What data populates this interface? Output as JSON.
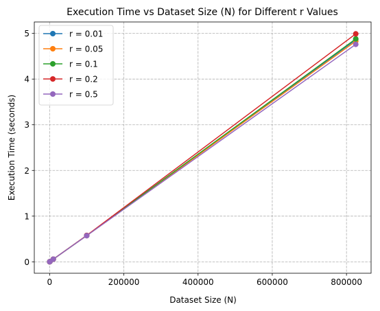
{
  "chart_data": {
    "type": "line",
    "title": "Execution Time vs Dataset Size (N) for Different r Values",
    "xlabel": "Dataset Size (N)",
    "ylabel": "Execution Time (seconds)",
    "xlim": [
      -41250,
      866250
    ],
    "ylim": [
      -0.25,
      5.25
    ],
    "xticks": [
      0,
      200000,
      400000,
      600000,
      800000
    ],
    "yticks": [
      0,
      1,
      2,
      3,
      4,
      5
    ],
    "grid": true,
    "legend_position": "top-left",
    "x": [
      100,
      1000,
      10000,
      100000,
      825000
    ],
    "series": [
      {
        "name": "r = 0.01",
        "color": "#1f77b4",
        "values": [
          0.0006,
          0.006,
          0.058,
          0.575,
          4.86
        ]
      },
      {
        "name": "r = 0.05",
        "color": "#ff7f0e",
        "values": [
          0.0006,
          0.006,
          0.058,
          0.574,
          4.83
        ]
      },
      {
        "name": "r = 0.1",
        "color": "#2ca02c",
        "values": [
          0.0006,
          0.006,
          0.058,
          0.575,
          4.88
        ]
      },
      {
        "name": "r = 0.2",
        "color": "#d62728",
        "values": [
          0.0006,
          0.006,
          0.058,
          0.578,
          4.99
        ]
      },
      {
        "name": "r = 0.5",
        "color": "#9467bd",
        "values": [
          0.0006,
          0.006,
          0.058,
          0.572,
          4.76
        ]
      }
    ]
  }
}
